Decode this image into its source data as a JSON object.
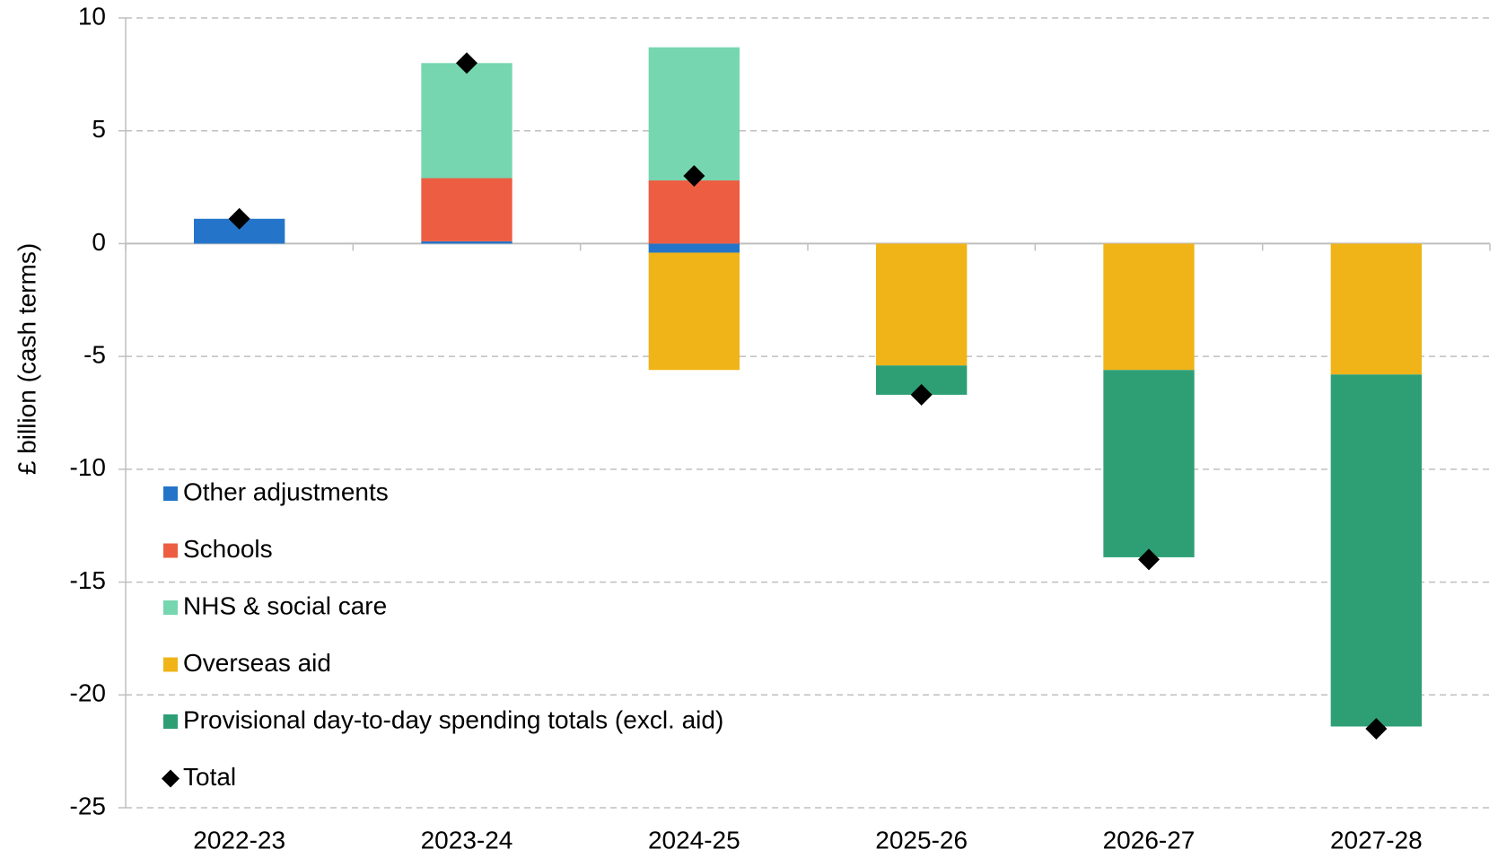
{
  "chart_data": {
    "type": "bar",
    "stacked": true,
    "y_label": "£ billion (cash terms)",
    "categories": [
      "2022-23",
      "2023-24",
      "2024-25",
      "2025-26",
      "2026-27",
      "2027-28"
    ],
    "series": [
      {
        "name": "Other adjustments",
        "color": "#2475c9",
        "values": [
          1.1,
          0.1,
          -0.4,
          null,
          null,
          null
        ]
      },
      {
        "name": "Schools",
        "color": "#ed5d42",
        "values": [
          null,
          2.8,
          2.8,
          null,
          null,
          null
        ]
      },
      {
        "name": "NHS & social care",
        "color": "#76d6b0",
        "values": [
          null,
          5.1,
          5.9,
          null,
          null,
          null
        ]
      },
      {
        "name": "Overseas aid",
        "color": "#f0b418",
        "values": [
          null,
          null,
          -5.2,
          -5.4,
          -5.6,
          -5.8
        ]
      },
      {
        "name": "Provisional day-to-day spending totals (excl. aid)",
        "color": "#2e9f75",
        "values": [
          null,
          null,
          null,
          -1.3,
          -8.3,
          -15.6
        ]
      }
    ],
    "total": {
      "name": "Total",
      "color": "#000000",
      "values": [
        1.1,
        8.0,
        3.0,
        -6.7,
        -14.0,
        -21.5
      ]
    },
    "ylim": [
      -25,
      10
    ],
    "yticks": [
      -25,
      -20,
      -15,
      -10,
      -5,
      0,
      5,
      10
    ],
    "grid": true,
    "legend": "bottom-left"
  }
}
